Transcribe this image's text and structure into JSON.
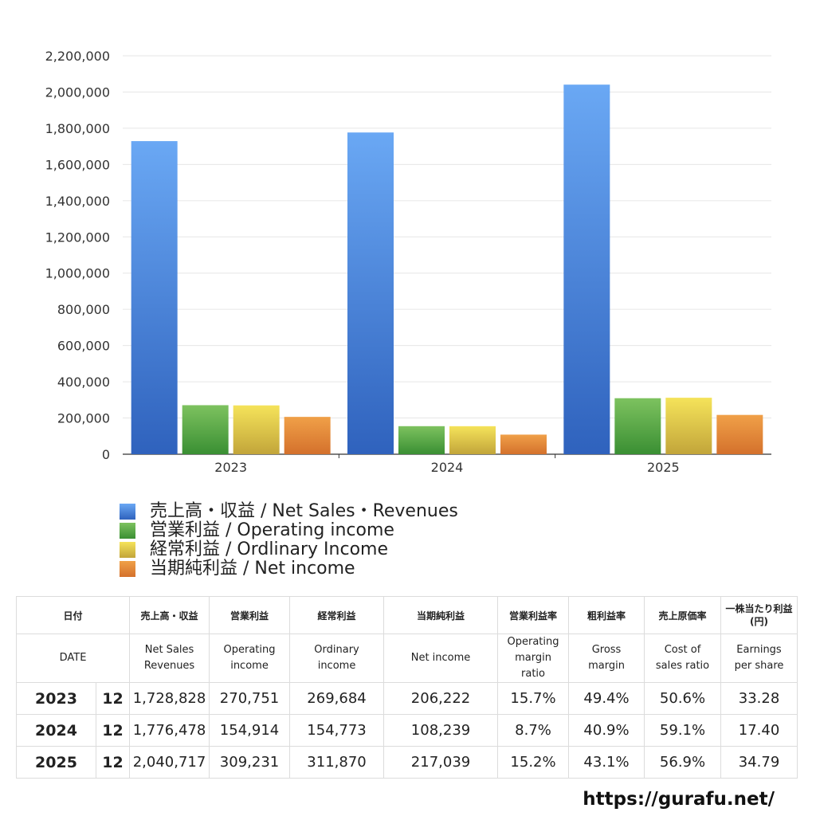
{
  "chart_data": {
    "type": "bar",
    "categories": [
      "2023",
      "2024",
      "2025"
    ],
    "ylim": [
      0,
      2200000
    ],
    "yticks": [
      "0",
      "200,000",
      "400,000",
      "600,000",
      "800,000",
      "1,000,000",
      "1,200,000",
      "1,400,000",
      "1,600,000",
      "1,800,000",
      "2,000,000",
      "2,200,000"
    ],
    "grid": true,
    "series": [
      {
        "name": "売上高・収益 / Net Sales・Revenues",
        "values": [
          1728828,
          1776478,
          2040717
        ],
        "color_top": "#6aa8f4",
        "color_bottom": "#2f62bd"
      },
      {
        "name": "営業利益 / Operating income",
        "values": [
          270751,
          154914,
          309231
        ],
        "color_top": "#7dc25f",
        "color_bottom": "#3a8f33"
      },
      {
        "name": "経常利益 / Ordlinary Income",
        "values": [
          269684,
          154773,
          311870
        ],
        "color_top": "#f5e35a",
        "color_bottom": "#c2a53a"
      },
      {
        "name": "当期純利益 / Net income",
        "values": [
          206222,
          108239,
          217039
        ],
        "color_top": "#f0a048",
        "color_bottom": "#d4712c"
      }
    ]
  },
  "table": {
    "headers_jp": [
      "日付",
      "売上高・収益",
      "営業利益",
      "経常利益",
      "当期純利益",
      "営業利益率",
      "粗利益率",
      "売上原価率",
      "一株当たり利益",
      "(円)"
    ],
    "headers_en": {
      "date": "DATE",
      "sales_1": "Net Sales",
      "sales_2": "Revenues",
      "op_1": "Operating",
      "op_2": "income",
      "ord_1": "Ordinary",
      "ord_2": "income",
      "net": "Net income",
      "opm_1": "Operating",
      "opm_2": "margin",
      "opm_3": "ratio",
      "gm_1": "Gross",
      "gm_2": "margin",
      "cos_1": "Cost of",
      "cos_2": "sales ratio",
      "eps_1": "Earnings",
      "eps_2": "per share"
    },
    "rows": [
      {
        "year": "2023",
        "month": "12",
        "sales": "1,728,828",
        "op": "270,751",
        "ord": "269,684",
        "net": "206,222",
        "opm": "15.7%",
        "gm": "49.4%",
        "cos": "50.6%",
        "eps": "33.28"
      },
      {
        "year": "2024",
        "month": "12",
        "sales": "1,776,478",
        "op": "154,914",
        "ord": "154,773",
        "net": "108,239",
        "opm": "8.7%",
        "gm": "40.9%",
        "cos": "59.1%",
        "eps": "17.40"
      },
      {
        "year": "2025",
        "month": "12",
        "sales": "2,040,717",
        "op": "309,231",
        "ord": "311,870",
        "net": "217,039",
        "opm": "15.2%",
        "gm": "43.1%",
        "cos": "56.9%",
        "eps": "34.79"
      }
    ]
  },
  "footer": {
    "url": "https://gurafu.net/"
  }
}
